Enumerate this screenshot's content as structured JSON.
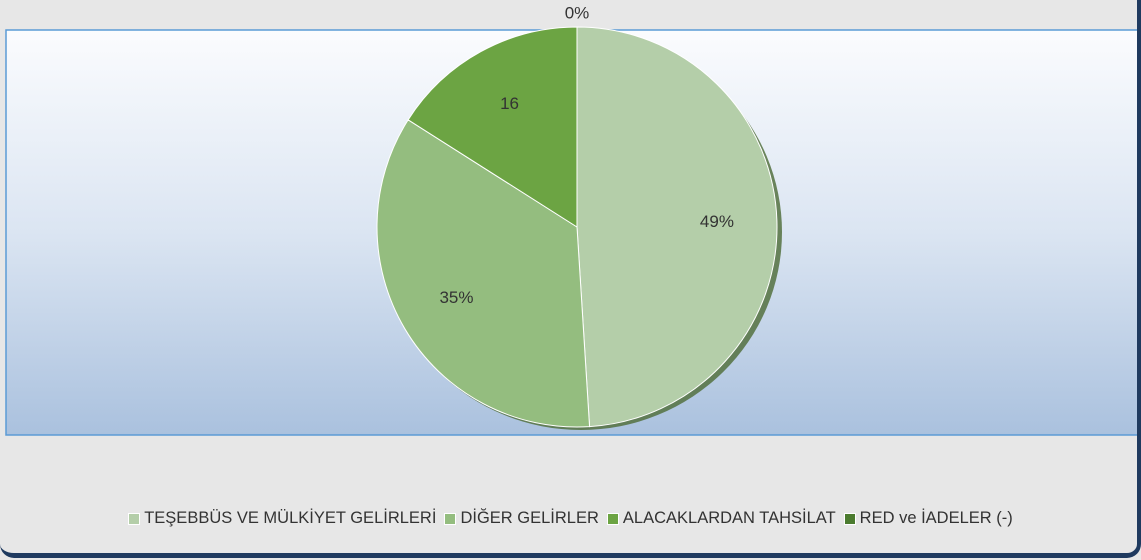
{
  "chart_data": {
    "type": "pie",
    "categories": [
      "TEŞEBBÜS VE MÜLKİYET GELİRLERİ",
      "DİĞER GELİRLER",
      "ALACAKLARDAN TAHSİLAT",
      "RED ve İADELER (-)"
    ],
    "values": [
      49,
      35,
      16,
      0
    ],
    "value_labels": [
      "49%",
      "35%",
      "16",
      "0%"
    ],
    "colors": [
      "#b4cea9",
      "#94bd7f",
      "#6ca443",
      "#4b7b2f"
    ],
    "legend": "bottom"
  }
}
